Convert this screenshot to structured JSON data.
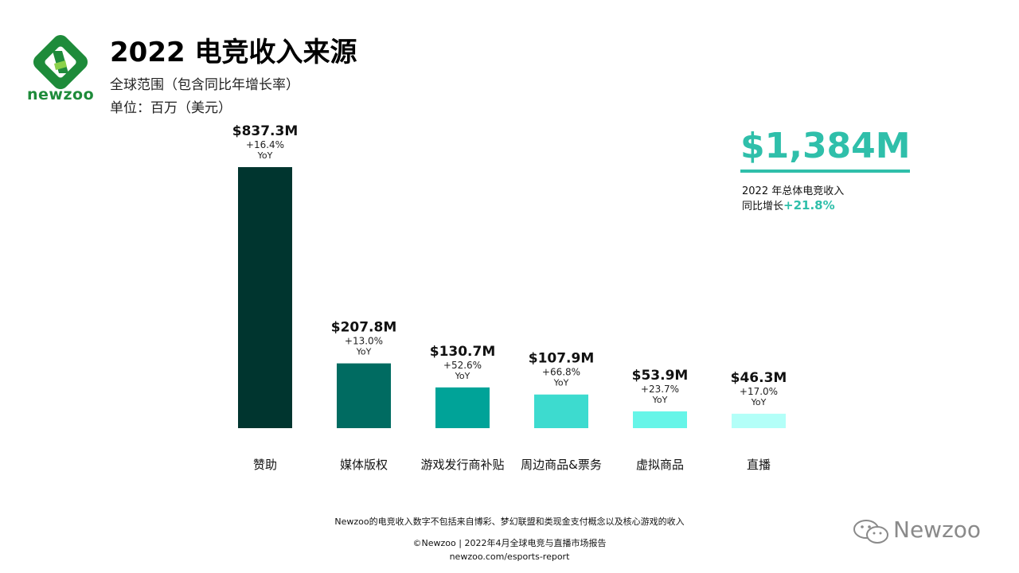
{
  "logo": {
    "text": "newzoo"
  },
  "header": {
    "title": "2022 电竞收入来源",
    "subtitle": "全球范围（包含同比年增长率）",
    "unit": "单位：百万（美元）"
  },
  "summary": {
    "total": "$1,384M",
    "label": "2022 年总体电竞收入",
    "growth_prefix": "同比增长",
    "growth": "+21.8%"
  },
  "chart_data": {
    "type": "bar",
    "categories": [
      "赞助",
      "媒体版权",
      "游戏发行商补贴",
      "周边商品&票务",
      "虚拟商品",
      "直播"
    ],
    "values": [
      837.3,
      207.8,
      130.7,
      107.9,
      53.9,
      46.3
    ],
    "value_labels": [
      "$837.3M",
      "$207.8M",
      "$130.7M",
      "$107.9M",
      "$53.9M",
      "$46.3M"
    ],
    "growth_labels": [
      "+16.4%",
      "+13.0%",
      "+52.6%",
      "+66.8%",
      "+23.7%",
      "+17.0%"
    ],
    "growth_suffix": "YoY",
    "colors": [
      "#00352f",
      "#006b61",
      "#00a398",
      "#3ddbcf",
      "#66f5e8",
      "#b3fff8"
    ],
    "ylim": [
      0,
      837.3
    ]
  },
  "footer": {
    "note": "Newzoo的电竞收入数字不包括来自博彩、梦幻联盟和类现金支付概念以及核心游戏的收入",
    "copyright": "©Newzoo | 2022年4月全球电竞与直播市场报告",
    "url": "newzoo.com/esports-report"
  },
  "watermark": {
    "text": "Newzoo",
    "icon": "wechat-icon"
  }
}
